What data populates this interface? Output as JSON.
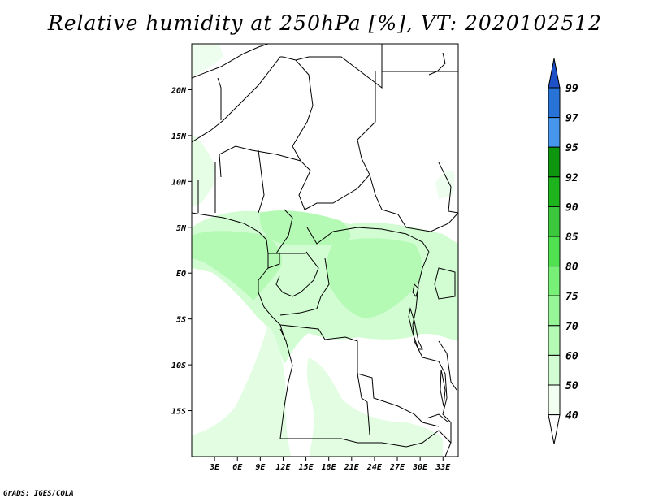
{
  "title": "Relative humidity at 250hPa [%], VT: 2020102512",
  "credit": "GrADS: IGES/COLA",
  "map": {
    "lon_range": [
      0,
      35
    ],
    "lat_range": [
      -20,
      25
    ],
    "lon_ticks": [
      "3E",
      "6E",
      "9E",
      "12E",
      "15E",
      "18E",
      "21E",
      "24E",
      "27E",
      "30E",
      "33E"
    ],
    "lat_ticks": [
      "20N",
      "15N",
      "10N",
      "5N",
      "EQ",
      "5S",
      "10S",
      "15S"
    ]
  },
  "colorbar": {
    "levels": [
      "99",
      "97",
      "95",
      "92",
      "90",
      "85",
      "80",
      "75",
      "70",
      "60",
      "50",
      "40"
    ],
    "colors": [
      "#1e50c8",
      "#2873d7",
      "#4696eb",
      "#0f960f",
      "#1eb41e",
      "#3cc83c",
      "#50e150",
      "#78f078",
      "#96f596",
      "#b4fab4",
      "#d2fcd2",
      "#f0fff0"
    ]
  }
}
